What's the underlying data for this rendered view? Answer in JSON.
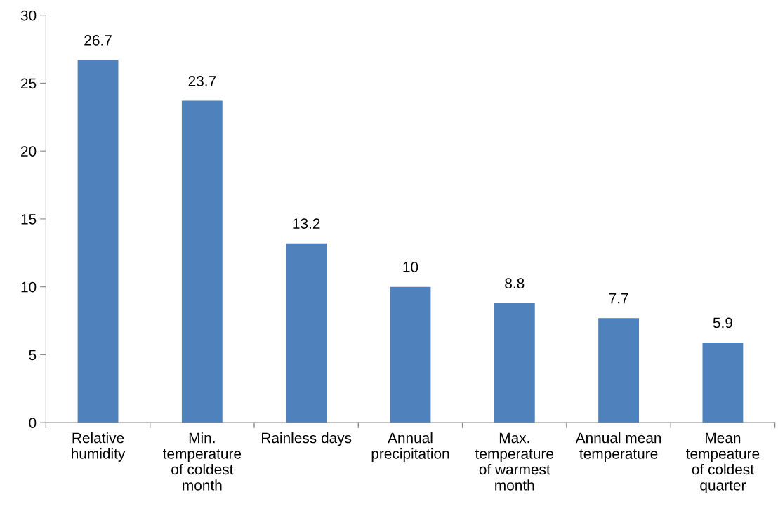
{
  "chart_data": {
    "type": "bar",
    "categories": [
      "Relative\nhumidity",
      "Min.\ntemperature\nof coldest\nmonth",
      "Rainless days",
      "Annual\nprecipitation",
      "Max.\ntemperature\nof warmest\nmonth",
      "Annual mean\ntemperature",
      "Mean\ntempeature\nof coldest\nquarter"
    ],
    "values": [
      26.7,
      23.7,
      13.2,
      10,
      8.8,
      7.7,
      5.9
    ],
    "color": "#4f81bd",
    "ylim": [
      0,
      30
    ],
    "yticks": [
      0,
      5,
      10,
      15,
      20,
      25,
      30
    ],
    "data_labels": true,
    "grid": false,
    "legend": false
  }
}
